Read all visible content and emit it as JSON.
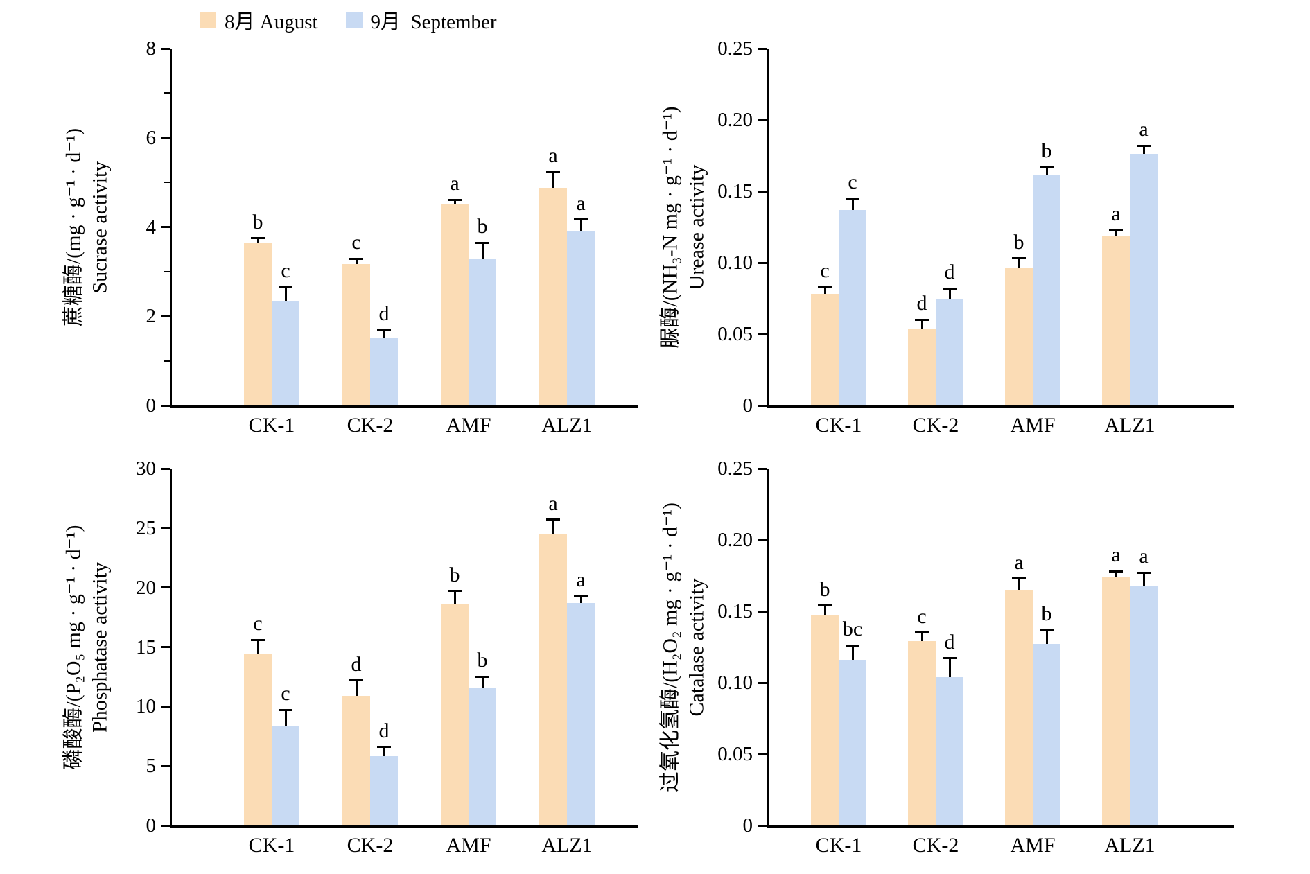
{
  "legend": {
    "items": [
      {
        "name": "august",
        "label": "8月 August",
        "color": "#FBDCB5"
      },
      {
        "name": "september",
        "label": "9月  September",
        "color": "#C8DAF3"
      }
    ]
  },
  "colors": {
    "axis": "#000000",
    "august": "#FBDCB5",
    "september": "#C8DAF3"
  },
  "categories": [
    "CK-1",
    "CK-2",
    "AMF",
    "ALZ1"
  ],
  "chart_data": [
    {
      "id": "sucrase",
      "type": "bar",
      "title": "Sucrase activity",
      "ylabel_cn": "蔗糖酶/(mg · g⁻¹ · d⁻¹)",
      "ylabel_en": "Sucrase activity",
      "ylim": [
        0,
        8
      ],
      "ytick_step": 2,
      "minor_tick_step": 1,
      "tick_decimals": 0,
      "grid": false,
      "categories": [
        "CK-1",
        "CK-2",
        "AMF",
        "ALZ1"
      ],
      "series": [
        {
          "name": "8月 August",
          "values": [
            3.65,
            3.17,
            4.5,
            4.88
          ],
          "errors": [
            0.1,
            0.12,
            0.11,
            0.35
          ],
          "letters": [
            "b",
            "c",
            "a",
            "a"
          ]
        },
        {
          "name": "9月  September",
          "values": [
            2.35,
            1.52,
            3.3,
            3.92
          ],
          "errors": [
            0.3,
            0.17,
            0.35,
            0.25
          ],
          "letters": [
            "c",
            "d",
            "b",
            "a"
          ]
        }
      ]
    },
    {
      "id": "urease",
      "type": "bar",
      "title": "Urease activity",
      "ylabel_cn": "脲酶/(NH₃-N mg · g⁻¹ · d⁻¹)",
      "ylabel_en": "Urease activity",
      "ylim": [
        0,
        0.25
      ],
      "ytick_step": 0.05,
      "minor_tick_step": null,
      "tick_decimals": 2,
      "grid": false,
      "categories": [
        "CK-1",
        "CK-2",
        "AMF",
        "ALZ1"
      ],
      "series": [
        {
          "name": "8月 August",
          "values": [
            0.078,
            0.054,
            0.096,
            0.119
          ],
          "errors": [
            0.005,
            0.006,
            0.007,
            0.004
          ],
          "letters": [
            "c",
            "d",
            "b",
            "a"
          ]
        },
        {
          "name": "9月  September",
          "values": [
            0.137,
            0.075,
            0.161,
            0.176
          ],
          "errors": [
            0.008,
            0.007,
            0.006,
            0.006
          ],
          "letters": [
            "c",
            "d",
            "b",
            "a"
          ]
        }
      ]
    },
    {
      "id": "phosphatase",
      "type": "bar",
      "title": "Phosphatase activity",
      "ylabel_cn": "磷酸酶/(P₂O₅ mg · g⁻¹ · d⁻¹)",
      "ylabel_en": "Phosphatase activity",
      "ylim": [
        0,
        30
      ],
      "ytick_step": 5,
      "minor_tick_step": null,
      "tick_decimals": 0,
      "grid": false,
      "categories": [
        "CK-1",
        "CK-2",
        "AMF",
        "ALZ1"
      ],
      "series": [
        {
          "name": "8月 August",
          "values": [
            14.4,
            10.9,
            18.6,
            24.5
          ],
          "errors": [
            1.2,
            1.3,
            1.1,
            1.2
          ],
          "letters": [
            "c",
            "d",
            "b",
            "a"
          ]
        },
        {
          "name": "9月  September",
          "values": [
            8.4,
            5.8,
            11.6,
            18.7
          ],
          "errors": [
            1.3,
            0.8,
            0.9,
            0.6
          ],
          "letters": [
            "c",
            "d",
            "b",
            "a"
          ]
        }
      ]
    },
    {
      "id": "catalase",
      "type": "bar",
      "title": "Catalase activity",
      "ylabel_cn": "过氧化氢酶/(H₂O₂ mg · g⁻¹ · d⁻¹)",
      "ylabel_en": "Catalase activity",
      "ylim": [
        0,
        0.25
      ],
      "ytick_step": 0.05,
      "minor_tick_step": null,
      "tick_decimals": 2,
      "grid": false,
      "categories": [
        "CK-1",
        "CK-2",
        "AMF",
        "ALZ1"
      ],
      "series": [
        {
          "name": "8月 August",
          "values": [
            0.147,
            0.129,
            0.165,
            0.174
          ],
          "errors": [
            0.007,
            0.006,
            0.008,
            0.004
          ],
          "letters": [
            "b",
            "c",
            "a",
            "a"
          ]
        },
        {
          "name": "9月  September",
          "values": [
            0.116,
            0.104,
            0.127,
            0.168
          ],
          "errors": [
            0.01,
            0.013,
            0.01,
            0.009
          ],
          "letters": [
            "bc",
            "d",
            "b",
            "a"
          ]
        }
      ]
    }
  ]
}
